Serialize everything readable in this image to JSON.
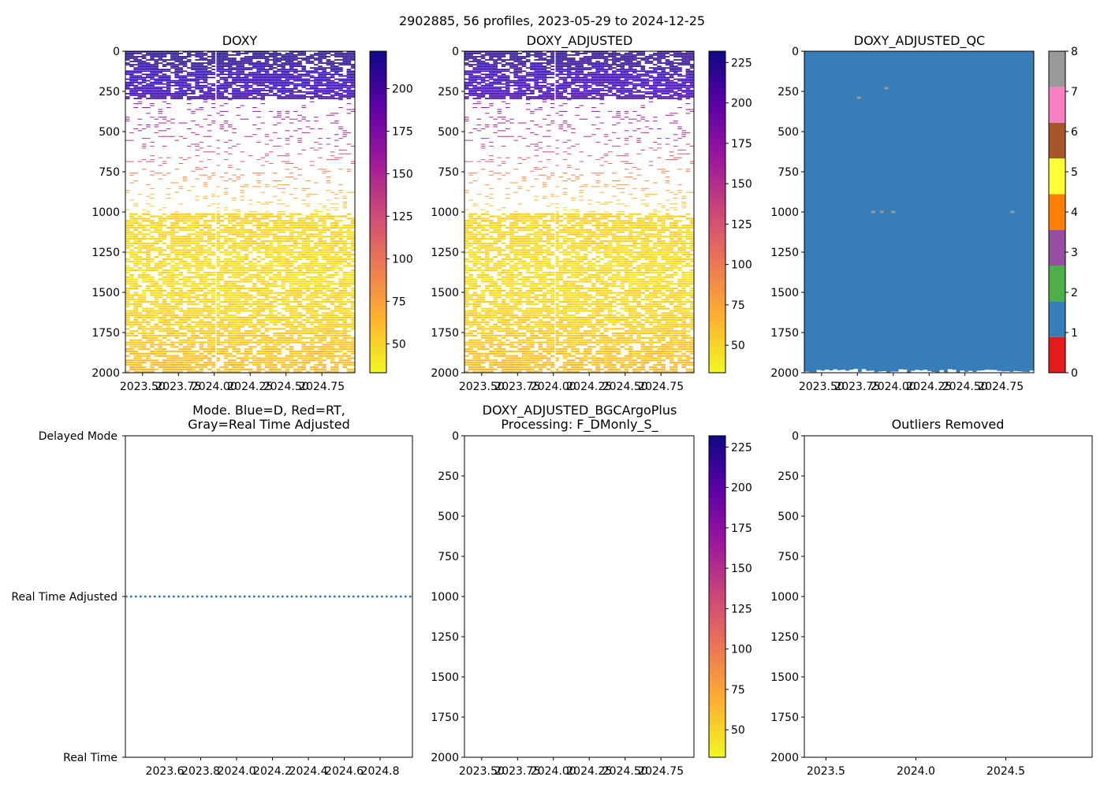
{
  "figure_title": "2902885, 56 profiles, 2023-05-29 to 2024-12-25",
  "colors": {
    "plasma_stops": [
      "#f0f921",
      "#fdb32f",
      "#ed7953",
      "#cc4778",
      "#9c179e",
      "#5c01a6",
      "#0d0887"
    ],
    "qc_colors": [
      "#e41a1c",
      "#377eb8",
      "#4daf4a",
      "#984ea3",
      "#ff7f00",
      "#ffff33",
      "#a65628",
      "#f781bf",
      "#999999"
    ],
    "mode_line": "#1f77b4"
  },
  "chart_data": [
    {
      "id": "doxy",
      "type": "heatmap",
      "title": "DOXY",
      "ylim": [
        2000,
        0
      ],
      "xlim": [
        2023.38,
        2024.98
      ],
      "yticks": [
        "0",
        "250",
        "500",
        "750",
        "1000",
        "1250",
        "1500",
        "1750",
        "2000"
      ],
      "xticks": [
        "2023.50",
        "2023.75",
        "2024.00",
        "2024.25",
        "2024.50",
        "2024.75"
      ],
      "colorbar_ticks": [
        "50",
        "75",
        "100",
        "125",
        "150",
        "175",
        "200"
      ],
      "colorbar_range": [
        33,
        222
      ],
      "depth_profile": [
        [
          0,
          215
        ],
        [
          300,
          205
        ],
        [
          310,
          165
        ],
        [
          500,
          150
        ],
        [
          700,
          110
        ],
        [
          850,
          75
        ],
        [
          1000,
          50
        ],
        [
          1400,
          45
        ],
        [
          1700,
          50
        ],
        [
          2000,
          60
        ]
      ]
    },
    {
      "id": "doxy_adjusted",
      "type": "heatmap",
      "title": "DOXY_ADJUSTED",
      "ylim": [
        2000,
        0
      ],
      "xlim": [
        2023.38,
        2024.98
      ],
      "yticks": [
        "0",
        "250",
        "500",
        "750",
        "1000",
        "1250",
        "1500",
        "1750",
        "2000"
      ],
      "xticks": [
        "2023.50",
        "2023.75",
        "2024.00",
        "2024.25",
        "2024.50",
        "2024.75"
      ],
      "colorbar_ticks": [
        "50",
        "75",
        "100",
        "125",
        "150",
        "175",
        "200",
        "225"
      ],
      "colorbar_range": [
        33,
        232
      ],
      "depth_profile": [
        [
          0,
          222
        ],
        [
          300,
          210
        ],
        [
          310,
          170
        ],
        [
          500,
          155
        ],
        [
          700,
          112
        ],
        [
          850,
          77
        ],
        [
          1000,
          51
        ],
        [
          1400,
          46
        ],
        [
          1700,
          51
        ],
        [
          2000,
          62
        ]
      ]
    },
    {
      "id": "doxy_adjusted_qc",
      "type": "heatmap",
      "title": "DOXY_ADJUSTED_QC",
      "ylim": [
        2000,
        0
      ],
      "xlim": [
        2023.38,
        2024.98
      ],
      "yticks": [
        "0",
        "250",
        "500",
        "750",
        "1000",
        "1250",
        "1500",
        "1750",
        "2000"
      ],
      "xticks": [
        "2023.50",
        "2023.75",
        "2024.00",
        "2024.25",
        "2024.50",
        "2024.75"
      ],
      "colorbar_ticks": [
        "0",
        "1",
        "2",
        "3",
        "4",
        "5",
        "6",
        "7",
        "8"
      ],
      "dominant_flag": 1,
      "flag8_points": [
        [
          2023.86,
          1000
        ],
        [
          2023.92,
          1000
        ],
        [
          2024.0,
          1000
        ],
        [
          2024.83,
          1000
        ],
        [
          2023.76,
          290
        ],
        [
          2023.95,
          230
        ]
      ]
    },
    {
      "id": "mode",
      "type": "line",
      "title": "Mode. Blue=D, Red=RT,\nGray=Real Time Adjusted",
      "xlim": [
        2023.38,
        2024.98
      ],
      "xticks": [
        "2023.6",
        "2023.8",
        "2024.0",
        "2024.2",
        "2024.4",
        "2024.6",
        "2024.8"
      ],
      "ytick_labels": [
        "Delayed Mode",
        "Real Time Adjusted",
        "Real Time"
      ],
      "series": [
        {
          "name": "mode",
          "y_value": 0.5,
          "style": "dotted"
        }
      ]
    },
    {
      "id": "bgcargoplus",
      "type": "heatmap",
      "title": "DOXY_ADJUSTED_BGCArgoPlus\nProcessing: F_DMonly_S_",
      "ylim": [
        2000,
        0
      ],
      "yticks": [
        "0",
        "250",
        "500",
        "750",
        "1000",
        "1250",
        "1500",
        "1750",
        "2000"
      ],
      "xticks": [
        "2023.50",
        "2023.75",
        "2024.00",
        "2024.25",
        "2024.50",
        "2024.75"
      ],
      "colorbar_ticks": [
        "50",
        "75",
        "100",
        "125",
        "150",
        "175",
        "200",
        "225"
      ],
      "colorbar_range": [
        33,
        232
      ],
      "empty": true
    },
    {
      "id": "outliers",
      "type": "scatter",
      "title": "Outliers Removed",
      "ylim": [
        2000,
        0
      ],
      "yticks": [
        "0",
        "250",
        "500",
        "750",
        "1000",
        "1250",
        "1500",
        "1750",
        "2000"
      ],
      "xticks": [
        "2023.5",
        "2024.0",
        "2024.5"
      ],
      "empty": true
    }
  ]
}
